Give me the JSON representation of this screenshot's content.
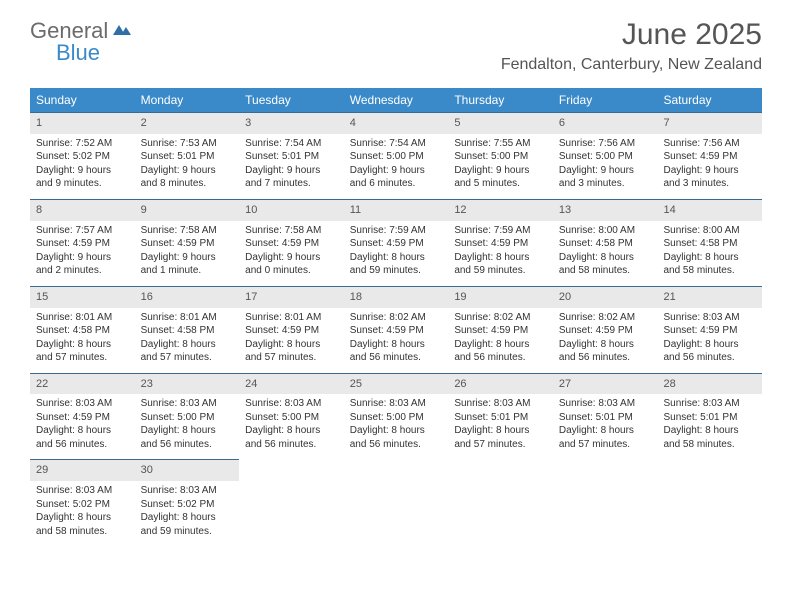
{
  "brand": {
    "part1": "General",
    "part2": "Blue"
  },
  "title": "June 2025",
  "location": "Fendalton, Canterbury, New Zealand",
  "weekdays": [
    "Sunday",
    "Monday",
    "Tuesday",
    "Wednesday",
    "Thursday",
    "Friday",
    "Saturday"
  ],
  "colors": {
    "header_bg": "#3a8ac9",
    "header_text": "#ffffff",
    "daynum_bg": "#e9e9e9",
    "border": "#3a6a90",
    "body_text": "#333333"
  },
  "weeks": [
    [
      {
        "n": "1",
        "sunrise": "Sunrise: 7:52 AM",
        "sunset": "Sunset: 5:02 PM",
        "daylight": "Daylight: 9 hours and 9 minutes."
      },
      {
        "n": "2",
        "sunrise": "Sunrise: 7:53 AM",
        "sunset": "Sunset: 5:01 PM",
        "daylight": "Daylight: 9 hours and 8 minutes."
      },
      {
        "n": "3",
        "sunrise": "Sunrise: 7:54 AM",
        "sunset": "Sunset: 5:01 PM",
        "daylight": "Daylight: 9 hours and 7 minutes."
      },
      {
        "n": "4",
        "sunrise": "Sunrise: 7:54 AM",
        "sunset": "Sunset: 5:00 PM",
        "daylight": "Daylight: 9 hours and 6 minutes."
      },
      {
        "n": "5",
        "sunrise": "Sunrise: 7:55 AM",
        "sunset": "Sunset: 5:00 PM",
        "daylight": "Daylight: 9 hours and 5 minutes."
      },
      {
        "n": "6",
        "sunrise": "Sunrise: 7:56 AM",
        "sunset": "Sunset: 5:00 PM",
        "daylight": "Daylight: 9 hours and 3 minutes."
      },
      {
        "n": "7",
        "sunrise": "Sunrise: 7:56 AM",
        "sunset": "Sunset: 4:59 PM",
        "daylight": "Daylight: 9 hours and 3 minutes."
      }
    ],
    [
      {
        "n": "8",
        "sunrise": "Sunrise: 7:57 AM",
        "sunset": "Sunset: 4:59 PM",
        "daylight": "Daylight: 9 hours and 2 minutes."
      },
      {
        "n": "9",
        "sunrise": "Sunrise: 7:58 AM",
        "sunset": "Sunset: 4:59 PM",
        "daylight": "Daylight: 9 hours and 1 minute."
      },
      {
        "n": "10",
        "sunrise": "Sunrise: 7:58 AM",
        "sunset": "Sunset: 4:59 PM",
        "daylight": "Daylight: 9 hours and 0 minutes."
      },
      {
        "n": "11",
        "sunrise": "Sunrise: 7:59 AM",
        "sunset": "Sunset: 4:59 PM",
        "daylight": "Daylight: 8 hours and 59 minutes."
      },
      {
        "n": "12",
        "sunrise": "Sunrise: 7:59 AM",
        "sunset": "Sunset: 4:59 PM",
        "daylight": "Daylight: 8 hours and 59 minutes."
      },
      {
        "n": "13",
        "sunrise": "Sunrise: 8:00 AM",
        "sunset": "Sunset: 4:58 PM",
        "daylight": "Daylight: 8 hours and 58 minutes."
      },
      {
        "n": "14",
        "sunrise": "Sunrise: 8:00 AM",
        "sunset": "Sunset: 4:58 PM",
        "daylight": "Daylight: 8 hours and 58 minutes."
      }
    ],
    [
      {
        "n": "15",
        "sunrise": "Sunrise: 8:01 AM",
        "sunset": "Sunset: 4:58 PM",
        "daylight": "Daylight: 8 hours and 57 minutes."
      },
      {
        "n": "16",
        "sunrise": "Sunrise: 8:01 AM",
        "sunset": "Sunset: 4:58 PM",
        "daylight": "Daylight: 8 hours and 57 minutes."
      },
      {
        "n": "17",
        "sunrise": "Sunrise: 8:01 AM",
        "sunset": "Sunset: 4:59 PM",
        "daylight": "Daylight: 8 hours and 57 minutes."
      },
      {
        "n": "18",
        "sunrise": "Sunrise: 8:02 AM",
        "sunset": "Sunset: 4:59 PM",
        "daylight": "Daylight: 8 hours and 56 minutes."
      },
      {
        "n": "19",
        "sunrise": "Sunrise: 8:02 AM",
        "sunset": "Sunset: 4:59 PM",
        "daylight": "Daylight: 8 hours and 56 minutes."
      },
      {
        "n": "20",
        "sunrise": "Sunrise: 8:02 AM",
        "sunset": "Sunset: 4:59 PM",
        "daylight": "Daylight: 8 hours and 56 minutes."
      },
      {
        "n": "21",
        "sunrise": "Sunrise: 8:03 AM",
        "sunset": "Sunset: 4:59 PM",
        "daylight": "Daylight: 8 hours and 56 minutes."
      }
    ],
    [
      {
        "n": "22",
        "sunrise": "Sunrise: 8:03 AM",
        "sunset": "Sunset: 4:59 PM",
        "daylight": "Daylight: 8 hours and 56 minutes."
      },
      {
        "n": "23",
        "sunrise": "Sunrise: 8:03 AM",
        "sunset": "Sunset: 5:00 PM",
        "daylight": "Daylight: 8 hours and 56 minutes."
      },
      {
        "n": "24",
        "sunrise": "Sunrise: 8:03 AM",
        "sunset": "Sunset: 5:00 PM",
        "daylight": "Daylight: 8 hours and 56 minutes."
      },
      {
        "n": "25",
        "sunrise": "Sunrise: 8:03 AM",
        "sunset": "Sunset: 5:00 PM",
        "daylight": "Daylight: 8 hours and 56 minutes."
      },
      {
        "n": "26",
        "sunrise": "Sunrise: 8:03 AM",
        "sunset": "Sunset: 5:01 PM",
        "daylight": "Daylight: 8 hours and 57 minutes."
      },
      {
        "n": "27",
        "sunrise": "Sunrise: 8:03 AM",
        "sunset": "Sunset: 5:01 PM",
        "daylight": "Daylight: 8 hours and 57 minutes."
      },
      {
        "n": "28",
        "sunrise": "Sunrise: 8:03 AM",
        "sunset": "Sunset: 5:01 PM",
        "daylight": "Daylight: 8 hours and 58 minutes."
      }
    ],
    [
      {
        "n": "29",
        "sunrise": "Sunrise: 8:03 AM",
        "sunset": "Sunset: 5:02 PM",
        "daylight": "Daylight: 8 hours and 58 minutes."
      },
      {
        "n": "30",
        "sunrise": "Sunrise: 8:03 AM",
        "sunset": "Sunset: 5:02 PM",
        "daylight": "Daylight: 8 hours and 59 minutes."
      },
      null,
      null,
      null,
      null,
      null
    ]
  ]
}
